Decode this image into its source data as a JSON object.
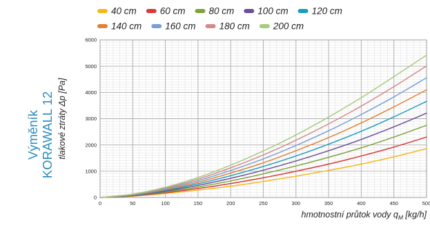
{
  "side_title": {
    "line1": "Výměník",
    "line2": "KORAWALL 12"
  },
  "chart_data": {
    "type": "line",
    "title": "",
    "xlabel_main": "hmotnostní průtok vody q",
    "xlabel_sub": "M",
    "xlabel_unit": " [kg/h]",
    "ylabel": "tlakové ztráty Δp [Pa]",
    "xlim": [
      0,
      500
    ],
    "ylim": [
      0,
      6000
    ],
    "x_ticks": [
      "0",
      "50",
      "100",
      "150",
      "200",
      "250",
      "300",
      "350",
      "400",
      "450",
      "500"
    ],
    "y_ticks": [
      "0",
      "1000",
      "2000",
      "3000",
      "4000",
      "5000",
      "6000"
    ],
    "grid": true,
    "legend_position": "top",
    "x": [
      0,
      50,
      100,
      150,
      200,
      250,
      300,
      350,
      400,
      450,
      500
    ],
    "series": [
      {
        "name": "40 cm",
        "color": "#f6b81c",
        "values": [
          0,
          50,
          150,
          280,
          430,
          610,
          810,
          1030,
          1270,
          1550,
          1860
        ]
      },
      {
        "name": "60 cm",
        "color": "#d63a3a",
        "values": [
          0,
          60,
          180,
          340,
          530,
          750,
          1000,
          1270,
          1580,
          1920,
          2300
        ]
      },
      {
        "name": "80 cm",
        "color": "#7fa33a",
        "values": [
          0,
          70,
          210,
          400,
          630,
          900,
          1200,
          1530,
          1890,
          2300,
          2750
        ]
      },
      {
        "name": "100 cm",
        "color": "#6a4f96",
        "values": [
          0,
          80,
          240,
          460,
          730,
          1040,
          1390,
          1780,
          2210,
          2690,
          3210
        ]
      },
      {
        "name": "120 cm",
        "color": "#1a9bc2",
        "values": [
          0,
          90,
          270,
          520,
          830,
          1180,
          1580,
          2030,
          2520,
          3070,
          3660
        ]
      },
      {
        "name": "140 cm",
        "color": "#e28233",
        "values": [
          0,
          100,
          300,
          580,
          930,
          1320,
          1780,
          2280,
          2840,
          3450,
          4100
        ]
      },
      {
        "name": "160 cm",
        "color": "#7a9fd6",
        "values": [
          0,
          110,
          330,
          640,
          1030,
          1470,
          1980,
          2540,
          3160,
          3830,
          4560
        ]
      },
      {
        "name": "180 cm",
        "color": "#d48a8a",
        "values": [
          0,
          120,
          360,
          700,
          1130,
          1620,
          2180,
          2800,
          3480,
          4220,
          5010
        ]
      },
      {
        "name": "200 cm",
        "color": "#a6cc7e",
        "values": [
          0,
          130,
          390,
          760,
          1230,
          1770,
          2380,
          3060,
          3800,
          4600,
          5420
        ]
      }
    ]
  }
}
